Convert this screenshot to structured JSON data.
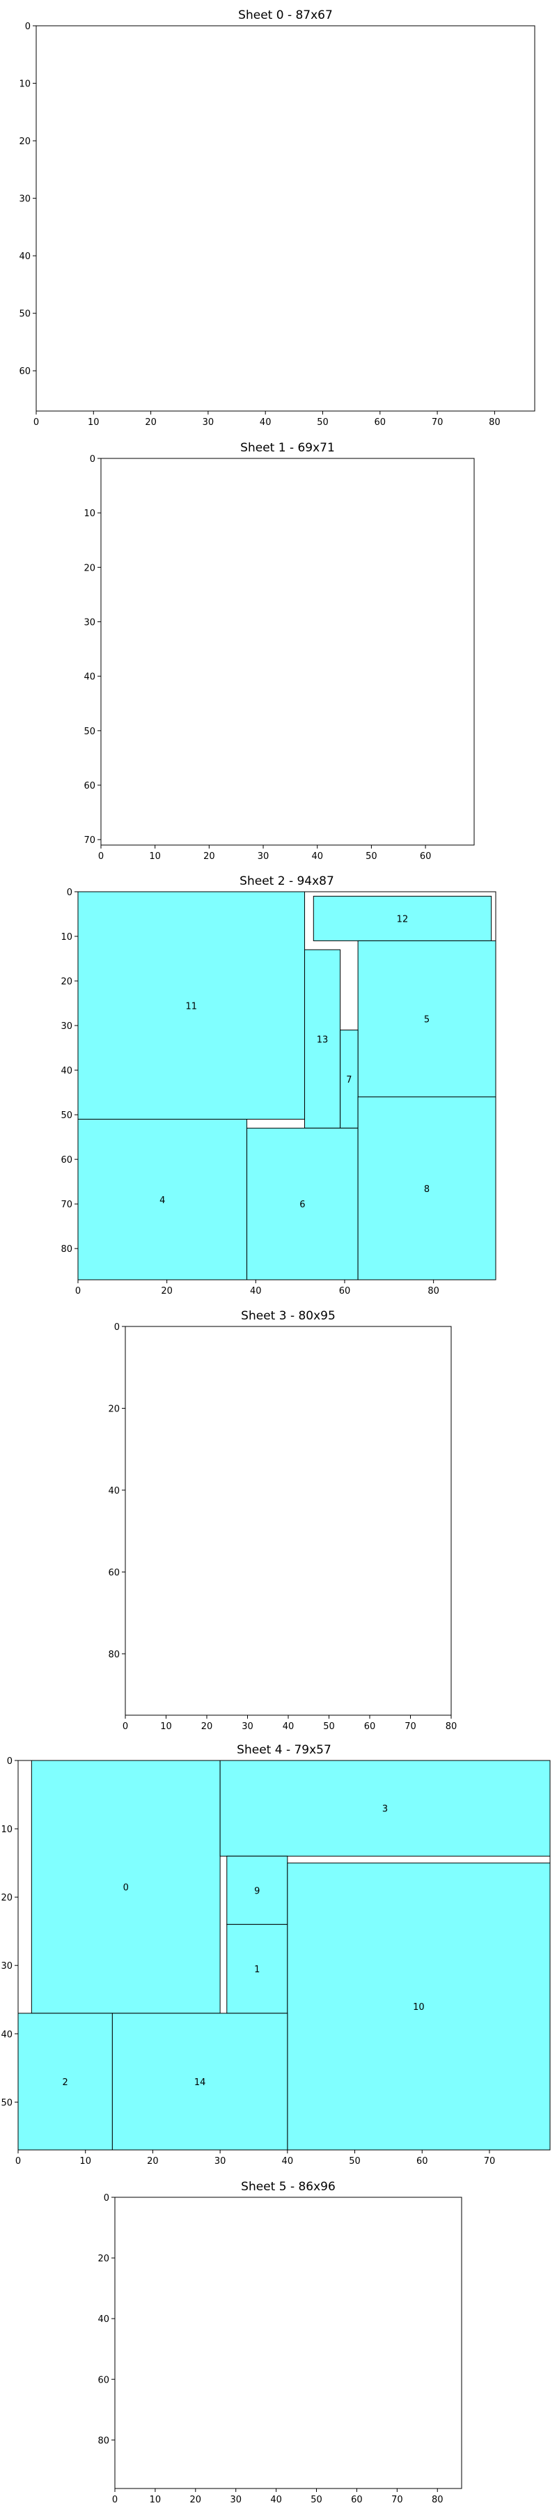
{
  "chart_data": [
    {
      "type": "rectangle-packing",
      "title": "Sheet 0 - 87x67",
      "width": 87,
      "height": 67,
      "xticks": [
        0,
        10,
        20,
        30,
        40,
        50,
        60,
        70,
        80
      ],
      "yticks": [
        0,
        10,
        20,
        30,
        40,
        50,
        60
      ],
      "pieces": []
    },
    {
      "type": "rectangle-packing",
      "title": "Sheet 1 - 69x71",
      "width": 69,
      "height": 71,
      "xticks": [
        0,
        10,
        20,
        30,
        40,
        50,
        60
      ],
      "yticks": [
        0,
        10,
        20,
        30,
        40,
        50,
        60,
        70
      ],
      "pieces": []
    },
    {
      "type": "rectangle-packing",
      "title": "Sheet 2 - 94x87",
      "width": 94,
      "height": 87,
      "xticks": [
        0,
        20,
        40,
        60,
        80
      ],
      "yticks": [
        0,
        10,
        20,
        30,
        40,
        50,
        60,
        70,
        80
      ],
      "pieces": [
        {
          "id": "11",
          "x": 0,
          "y": 0,
          "w": 51,
          "h": 51
        },
        {
          "id": "12",
          "x": 53,
          "y": 1,
          "w": 40,
          "h": 10
        },
        {
          "id": "13",
          "x": 51,
          "y": 13,
          "w": 8,
          "h": 40
        },
        {
          "id": "5",
          "x": 63,
          "y": 11,
          "w": 31,
          "h": 35
        },
        {
          "id": "7",
          "x": 59,
          "y": 31,
          "w": 4,
          "h": 22
        },
        {
          "id": "4",
          "x": 0,
          "y": 51,
          "w": 38,
          "h": 36
        },
        {
          "id": "6",
          "x": 38,
          "y": 53,
          "w": 25,
          "h": 34
        },
        {
          "id": "8",
          "x": 63,
          "y": 46,
          "w": 31,
          "h": 41
        }
      ]
    },
    {
      "type": "rectangle-packing",
      "title": "Sheet 3 - 80x95",
      "width": 80,
      "height": 95,
      "xticks": [
        0,
        10,
        20,
        30,
        40,
        50,
        60,
        70,
        80
      ],
      "yticks": [
        0,
        20,
        40,
        60,
        80
      ],
      "pieces": []
    },
    {
      "type": "rectangle-packing",
      "title": "Sheet 4 - 79x57",
      "width": 79,
      "height": 57,
      "xticks": [
        0,
        10,
        20,
        30,
        40,
        50,
        60,
        70
      ],
      "yticks": [
        0,
        10,
        20,
        30,
        40,
        50
      ],
      "pieces": [
        {
          "id": "0",
          "x": 2,
          "y": 0,
          "w": 28,
          "h": 37
        },
        {
          "id": "3",
          "x": 30,
          "y": 0,
          "w": 49,
          "h": 14
        },
        {
          "id": "9",
          "x": 31,
          "y": 14,
          "w": 9,
          "h": 10
        },
        {
          "id": "1",
          "x": 31,
          "y": 24,
          "w": 9,
          "h": 13
        },
        {
          "id": "10",
          "x": 40,
          "y": 15,
          "w": 39,
          "h": 42
        },
        {
          "id": "2",
          "x": 0,
          "y": 37,
          "w": 14,
          "h": 20
        },
        {
          "id": "14",
          "x": 14,
          "y": 37,
          "w": 26,
          "h": 20
        }
      ]
    },
    {
      "type": "rectangle-packing",
      "title": "Sheet 5 - 86x96",
      "width": 86,
      "height": 96,
      "xticks": [
        0,
        10,
        20,
        30,
        40,
        50,
        60,
        70,
        80
      ],
      "yticks": [
        0,
        20,
        40,
        60,
        80
      ],
      "pieces": []
    }
  ],
  "colors": {
    "piece_fill": "#80ffff",
    "frame": "#000000",
    "background": "#ffffff"
  }
}
